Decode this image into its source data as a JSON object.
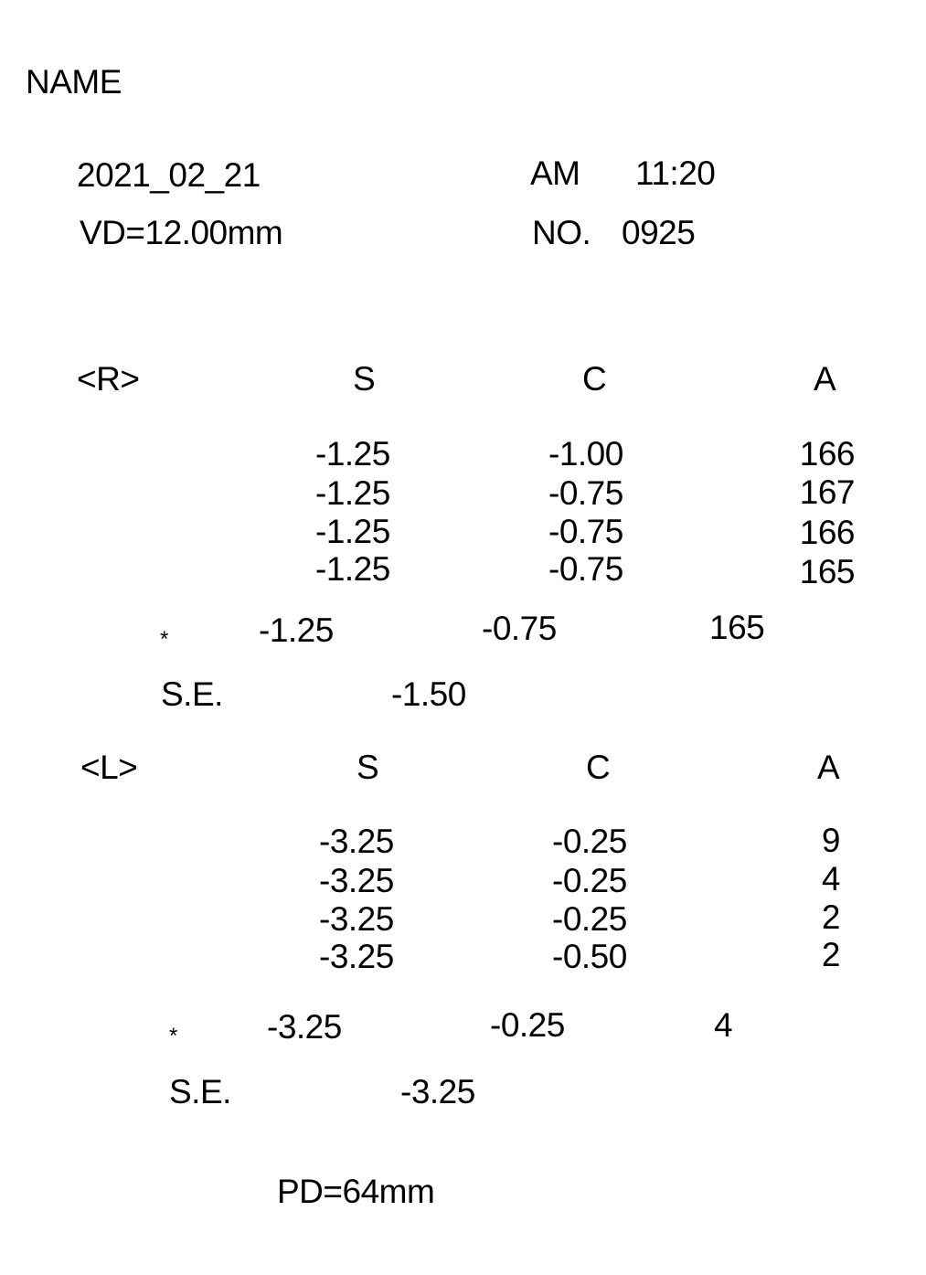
{
  "header": {
    "name_label": "NAME",
    "date": "2021_02_21",
    "ampm": "AM",
    "time": "11:20",
    "vd": "VD=12.00mm",
    "no_label": "NO.",
    "no_value": "0925"
  },
  "right": {
    "label": "<R>",
    "col_s": "S",
    "col_c": "C",
    "col_a": "A",
    "rows": [
      {
        "s": "-1.25",
        "c": "-1.00",
        "a": "166"
      },
      {
        "s": "-1.25",
        "c": "-0.75",
        "a": "167"
      },
      {
        "s": "-1.25",
        "c": "-0.75",
        "a": "166"
      },
      {
        "s": "-1.25",
        "c": "-0.75",
        "a": "165"
      }
    ],
    "avg": {
      "marker": "*",
      "s": "-1.25",
      "c": "-0.75",
      "a": "165"
    },
    "se_label": "S.E.",
    "se_value": "-1.50"
  },
  "left": {
    "label": "<L>",
    "col_s": "S",
    "col_c": "C",
    "col_a": "A",
    "rows": [
      {
        "s": "-3.25",
        "c": "-0.25",
        "a": "9"
      },
      {
        "s": "-3.25",
        "c": "-0.25",
        "a": "4"
      },
      {
        "s": "-3.25",
        "c": "-0.25",
        "a": "2"
      },
      {
        "s": "-3.25",
        "c": "-0.50",
        "a": "2"
      }
    ],
    "avg": {
      "marker": "*",
      "s": "-3.25",
      "c": "-0.25",
      "a": "4"
    },
    "se_label": "S.E.",
    "se_value": "-3.25"
  },
  "pd": "PD=64mm"
}
